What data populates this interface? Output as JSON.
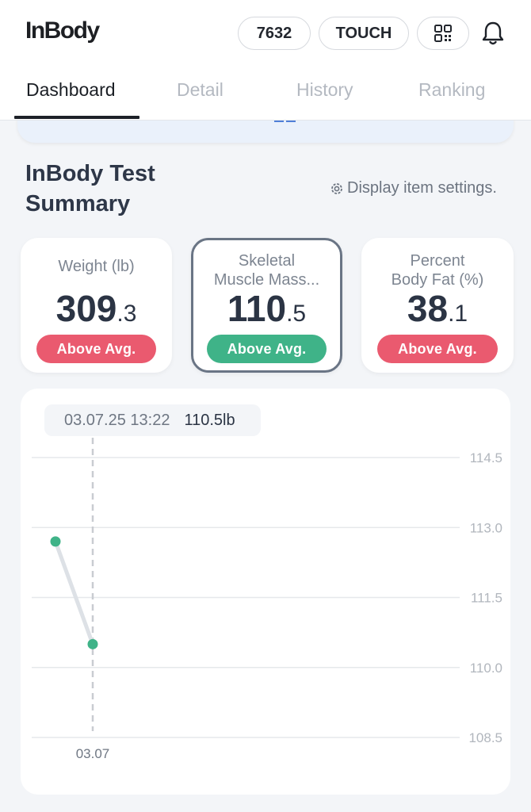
{
  "header": {
    "logo": "InBody",
    "id_label": "7632",
    "touch_label": "TOUCH"
  },
  "tabs": [
    {
      "label": "Dashboard",
      "active": true
    },
    {
      "label": "Detail",
      "active": false
    },
    {
      "label": "History",
      "active": false
    },
    {
      "label": "Ranking",
      "active": false
    }
  ],
  "summary": {
    "title": "InBody Test Summary",
    "settings_label": "Display item settings."
  },
  "cards": [
    {
      "label_line1": "Weight (lb)",
      "label_line2": "",
      "value_int": "309",
      "value_dec": ".3",
      "badge": "Above Avg.",
      "badge_color": "#ea5a6f",
      "selected": false
    },
    {
      "label_line1": "Skeletal",
      "label_line2": "Muscle Mass...",
      "value_int": "110",
      "value_dec": ".5",
      "badge": "Above Avg.",
      "badge_color": "#3fb388",
      "selected": true
    },
    {
      "label_line1": "Percent",
      "label_line2": "Body Fat (%)",
      "value_int": "38",
      "value_dec": ".1",
      "badge": "Above Avg.",
      "badge_color": "#ea5a6f",
      "selected": false
    }
  ],
  "tooltip": {
    "date": "03.07.25 13:22",
    "value": "110.5lb"
  },
  "chart_data": {
    "type": "line",
    "ylim": [
      108.5,
      114.5
    ],
    "yticks": [
      "114.5",
      "113.0",
      "111.5",
      "110.0",
      "108.5"
    ],
    "ytick_values": [
      114.5,
      113.0,
      111.5,
      110.0,
      108.5
    ],
    "xtick_label": "03.07",
    "points": [
      112.7,
      110.5
    ],
    "line_color": "#dde1e6",
    "point_color": "#3fb388"
  }
}
